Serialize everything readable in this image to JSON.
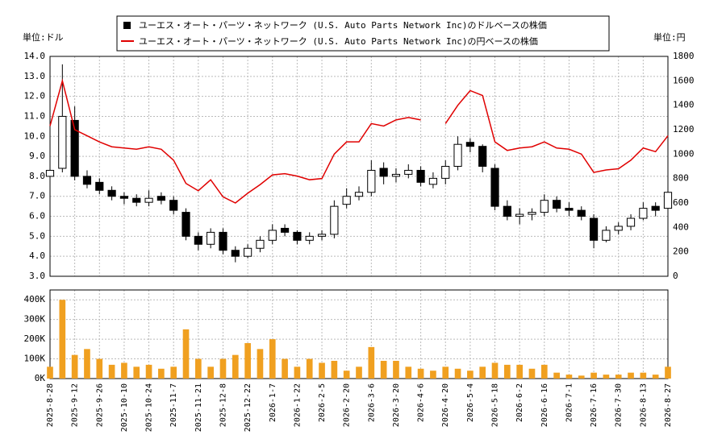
{
  "chart_data": [
    {
      "type": "candlestick",
      "name": "ユーエス・オート・パーツ・ネットワーク (U.S. Auto Parts Network Inc)のドルベースの株価",
      "color": "#000000",
      "unit_label": "単位:ドル",
      "y2_unit_label": "単位:円",
      "categories": [
        "2025-8-28",
        null,
        "2025-9-12",
        null,
        "2025-9-26",
        null,
        "2025-10-10",
        null,
        "2025-10-24",
        null,
        "2025-11-7",
        null,
        "2025-11-21",
        null,
        "2025-12-8",
        null,
        "2025-12-22",
        null,
        "2026-1-7",
        null,
        "2026-1-22",
        null,
        "2026-2-5",
        null,
        "2026-2-20",
        null,
        "2026-3-6",
        null,
        "2026-3-20",
        null,
        "2026-4-6",
        null,
        "2026-4-20",
        null,
        "2026-5-4",
        null,
        "2026-5-18",
        null,
        "2026-6-2",
        null,
        "2026-6-16",
        null,
        "2026-7-1",
        null,
        "2026-7-16",
        null,
        "2026-7-30",
        null,
        "2026-8-13",
        null,
        "2026-8-27"
      ],
      "open": [
        8.0,
        8.4,
        10.8,
        8.0,
        7.7,
        7.3,
        7.0,
        6.9,
        6.7,
        7.0,
        6.8,
        6.2,
        5.0,
        4.6,
        5.2,
        4.3,
        4.0,
        4.4,
        4.8,
        5.4,
        5.2,
        4.8,
        5.0,
        5.1,
        6.6,
        7.0,
        7.2,
        8.4,
        8.0,
        8.1,
        8.3,
        7.6,
        7.9,
        8.5,
        9.7,
        9.5,
        8.4,
        6.5,
        6.0,
        6.1,
        6.2,
        6.8,
        6.4,
        6.3,
        5.9,
        4.8,
        5.3,
        5.5,
        5.9,
        6.5,
        6.4
      ],
      "high": [
        8.6,
        13.6,
        11.5,
        8.3,
        7.9,
        7.5,
        7.2,
        7.1,
        7.3,
        7.2,
        7.0,
        6.4,
        5.2,
        5.4,
        5.4,
        4.5,
        4.6,
        5.0,
        5.6,
        5.6,
        5.3,
        5.2,
        5.3,
        6.8,
        7.4,
        7.5,
        8.8,
        8.7,
        8.4,
        8.6,
        8.5,
        8.2,
        8.8,
        10.0,
        9.9,
        9.6,
        8.6,
        6.8,
        6.4,
        6.4,
        7.1,
        7.0,
        6.7,
        6.5,
        6.1,
        5.5,
        5.7,
        6.1,
        6.7,
        6.7,
        7.4
      ],
      "low": [
        7.7,
        8.2,
        7.8,
        7.4,
        7.1,
        6.8,
        6.6,
        6.5,
        6.5,
        6.6,
        6.1,
        4.8,
        4.3,
        4.4,
        4.1,
        3.7,
        3.9,
        4.2,
        4.6,
        5.0,
        4.6,
        4.6,
        4.8,
        4.9,
        6.4,
        6.8,
        7.0,
        7.6,
        7.7,
        7.9,
        7.5,
        7.4,
        7.6,
        8.3,
        9.2,
        8.2,
        6.3,
        5.8,
        5.6,
        5.8,
        6.0,
        6.2,
        6.0,
        5.8,
        4.4,
        4.7,
        5.1,
        5.3,
        5.8,
        6.0,
        6.2
      ],
      "close": [
        8.3,
        11.0,
        8.0,
        7.6,
        7.3,
        7.0,
        6.9,
        6.7,
        6.9,
        6.8,
        6.3,
        5.0,
        4.6,
        5.2,
        4.3,
        4.0,
        4.4,
        4.8,
        5.3,
        5.2,
        4.8,
        5.0,
        5.1,
        6.5,
        7.0,
        7.2,
        8.3,
        8.0,
        8.1,
        8.3,
        7.7,
        7.9,
        8.5,
        9.6,
        9.5,
        8.5,
        6.5,
        6.0,
        6.1,
        6.2,
        6.8,
        6.4,
        6.3,
        6.0,
        4.8,
        5.3,
        5.5,
        5.9,
        6.4,
        6.3,
        7.2
      ],
      "ylim": [
        3,
        14
      ],
      "yticks": [
        {
          "value": 3,
          "label": "3.0"
        },
        {
          "value": 4,
          "label": "4.0"
        },
        {
          "value": 5,
          "label": "5.0"
        },
        {
          "value": 6,
          "label": "6.0"
        },
        {
          "value": 7,
          "label": "7.0"
        },
        {
          "value": 8,
          "label": "8.0"
        },
        {
          "value": 9,
          "label": "9.0"
        },
        {
          "value": 10,
          "label": "10.0"
        },
        {
          "value": 11,
          "label": "11.0"
        },
        {
          "value": 12,
          "label": "12.0"
        },
        {
          "value": 13,
          "label": "13.0"
        },
        {
          "value": 14,
          "label": "14.0"
        }
      ],
      "y2lim": [
        0,
        1800
      ],
      "y2ticks": [
        0,
        200,
        400,
        600,
        800,
        1000,
        1200,
        1400,
        1600,
        1800
      ],
      "grid": true,
      "series": [
        {
          "name": "ユーエス・オート・パーツ・ネットワーク (U.S. Auto Parts Network Inc)の円ベースの株価",
          "color": "#e00000",
          "axis": "y2",
          "values": [
            1230,
            1600,
            1200,
            1150,
            1100,
            1060,
            1050,
            1040,
            1060,
            1040,
            950,
            760,
            700,
            790,
            650,
            600,
            680,
            750,
            830,
            840,
            820,
            790,
            800,
            1000,
            1100,
            1100,
            1250,
            1230,
            1280,
            1300,
            1280,
            null,
            1250,
            1400,
            1520,
            1480,
            1100,
            1030,
            1050,
            1060,
            1100,
            1050,
            1040,
            1000,
            850,
            870,
            880,
            950,
            1050,
            1020,
            1150
          ]
        }
      ]
    },
    {
      "type": "bar",
      "color": "#f0a020",
      "values": [
        60000,
        400000,
        120000,
        150000,
        100000,
        70000,
        80000,
        60000,
        70000,
        50000,
        60000,
        250000,
        100000,
        60000,
        100000,
        120000,
        180000,
        150000,
        200000,
        100000,
        60000,
        100000,
        80000,
        90000,
        40000,
        60000,
        160000,
        90000,
        90000,
        60000,
        50000,
        40000,
        60000,
        50000,
        40000,
        60000,
        80000,
        70000,
        70000,
        50000,
        70000,
        30000,
        20000,
        15000,
        30000,
        20000,
        20000,
        30000,
        30000,
        20000,
        60000
      ],
      "ylim": [
        0,
        450000
      ],
      "yticks": [
        {
          "value": 0,
          "label": "0K"
        },
        {
          "value": 100000,
          "label": "100K"
        },
        {
          "value": 200000,
          "label": "200K"
        },
        {
          "value": 300000,
          "label": "300K"
        },
        {
          "value": 400000,
          "label": "400K"
        }
      ],
      "grid": true
    }
  ]
}
